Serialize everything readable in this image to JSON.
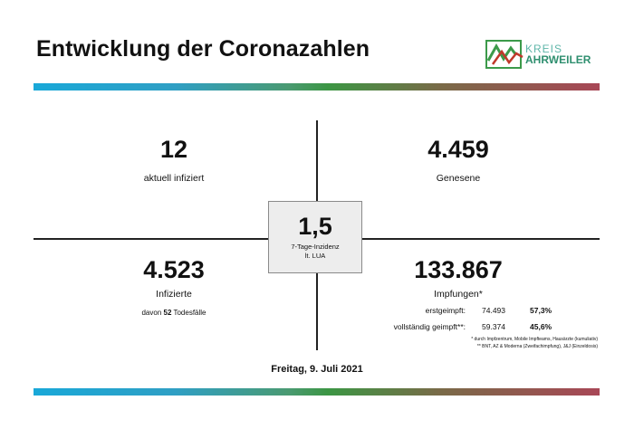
{
  "title": "Entwicklung der Coronazahlen",
  "logo": {
    "line1": "KREIS",
    "line2": "AHRWEILER",
    "colors": {
      "green": "#3c9a4a",
      "red": "#c0392b",
      "teal": "#2f8f6f"
    }
  },
  "center": {
    "value": "1,5",
    "label1": "7-Tage-Inzidenz",
    "label2": "lt. LUA"
  },
  "quadrants": {
    "active": {
      "value": "12",
      "label": "aktuell infiziert"
    },
    "recovered": {
      "value": "4.459",
      "label": "Genesene"
    },
    "infected": {
      "value": "4.523",
      "label": "Infizierte",
      "deaths_prefix": "davon ",
      "deaths_count": "52",
      "deaths_suffix": " Todesfälle"
    },
    "vaccinations": {
      "value": "133.867",
      "label": "Impfungen*"
    }
  },
  "vaccination_rows": [
    {
      "label": "erstgeimpft:",
      "count": "74.493",
      "percent": "57,3%"
    },
    {
      "label": "vollständig geimpft**:",
      "count": "59.374",
      "percent": "45,6%"
    }
  ],
  "footnotes": [
    "* durch Impfzentrum, Mobile Impfteams, Hausärzte (kumuliativ)",
    "** BNT, AZ & Moderna (Zweifachimpfung), J&J (Einzeldosis)"
  ],
  "date": "Freitag, 9. Juli 2021",
  "colors": {
    "bar_start": "#19a8d8",
    "bar_mid": "#3c9644",
    "bar_end": "#a84756"
  }
}
